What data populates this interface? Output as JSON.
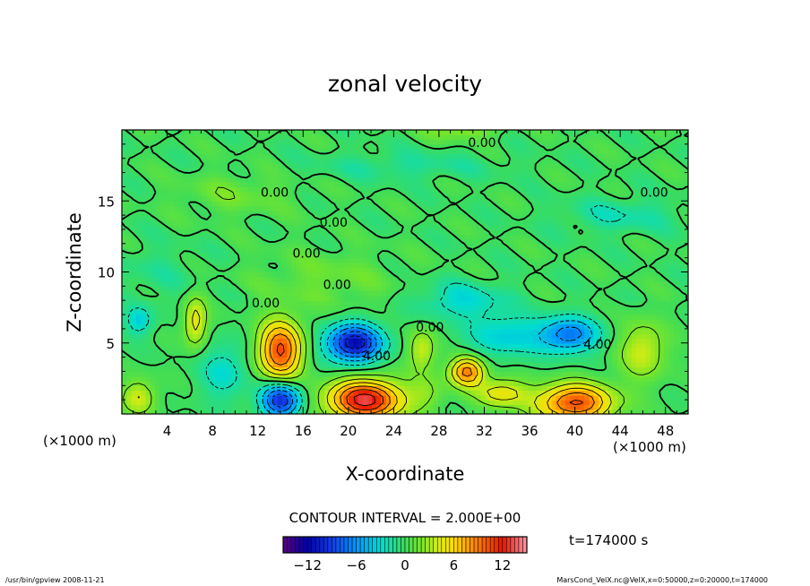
{
  "chart_data": {
    "type": "heatmap",
    "title": "zonal velocity",
    "xlabel": "X-coordinate",
    "ylabel": "Z-coordinate",
    "x_units": "(×1000 m)",
    "x_units_right": "(×1000 m)",
    "xlim": [
      0,
      50
    ],
    "ylim": [
      0,
      20
    ],
    "x_ticks": [
      4,
      8,
      12,
      16,
      20,
      24,
      28,
      32,
      36,
      40,
      44,
      48
    ],
    "y_ticks": [
      5,
      10,
      15
    ],
    "contour_interval_text": "CONTOUR INTERVAL = 2.000E+00",
    "time_text": "t=174000 s",
    "colorbar": {
      "min": -15,
      "max": 15,
      "ticks": [
        -12,
        -6,
        0,
        6,
        12
      ]
    },
    "contour_labels": [
      {
        "x": 31.8,
        "y": 18.8,
        "text": "0.00"
      },
      {
        "x": 13.5,
        "y": 15.3,
        "text": "0.00"
      },
      {
        "x": 47.0,
        "y": 15.3,
        "text": "0.00"
      },
      {
        "x": 18.7,
        "y": 13.2,
        "text": "0.00"
      },
      {
        "x": 16.3,
        "y": 11.0,
        "text": "0.00"
      },
      {
        "x": 19.0,
        "y": 8.8,
        "text": "0.00"
      },
      {
        "x": 12.7,
        "y": 7.5,
        "text": "0.00"
      },
      {
        "x": 27.2,
        "y": 5.8,
        "text": "0.00"
      },
      {
        "x": 22.5,
        "y": 3.8,
        "text": "4.00"
      },
      {
        "x": 42.0,
        "y": 4.6,
        "text": "4.00"
      }
    ],
    "features": [
      {
        "x": 21.5,
        "y": 1.0,
        "value": 12
      },
      {
        "x": 40.0,
        "y": 0.8,
        "value": 10
      },
      {
        "x": 14.0,
        "y": 4.5,
        "value": 10
      },
      {
        "x": 30.5,
        "y": 3.0,
        "value": 9
      },
      {
        "x": 20.5,
        "y": 5.0,
        "value": -11
      },
      {
        "x": 14.0,
        "y": 1.0,
        "value": -10
      },
      {
        "x": 39.5,
        "y": 5.6,
        "value": -7
      },
      {
        "x": 6.5,
        "y": 6.5,
        "value": 5
      },
      {
        "x": 46.0,
        "y": 4.5,
        "value": 4
      }
    ]
  },
  "footer": {
    "left": "/usr/bin/gpview  2008-11-21",
    "right": "MarsCond_VelX.nc@VelX,x=0:50000,z=0:20000,t=174000"
  }
}
